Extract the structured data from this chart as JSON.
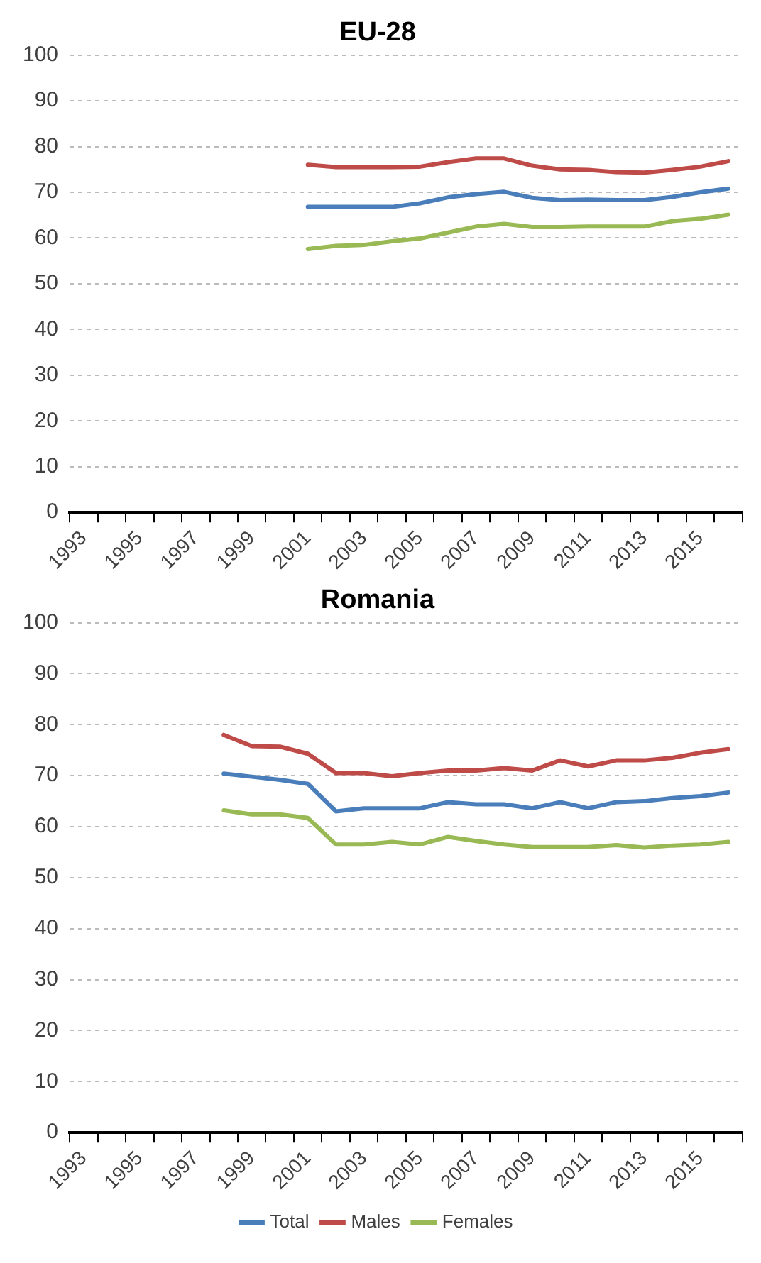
{
  "chart_data": [
    {
      "type": "line",
      "title": "EU-28",
      "categories": [
        "1993",
        null,
        "1995",
        null,
        "1997",
        null,
        "1999",
        null,
        "2001",
        null,
        "2003",
        null,
        "2005",
        null,
        "2007",
        null,
        "2009",
        null,
        "2011",
        null,
        "2013",
        null,
        "2015",
        null
      ],
      "ylim": [
        0,
        100
      ],
      "yticks": [
        0,
        10,
        20,
        30,
        40,
        50,
        60,
        70,
        80,
        90,
        100
      ],
      "grid": "y",
      "legend": false,
      "marker": "none",
      "line_style": "solid",
      "series": [
        {
          "color": "#4a7ebb",
          "values": [
            null,
            null,
            null,
            null,
            null,
            null,
            null,
            null,
            66.8,
            66.8,
            66.8,
            66.8,
            67.6,
            68.9,
            69.6,
            70.1,
            68.8,
            68.3,
            68.4,
            68.3,
            68.3,
            69,
            70,
            70.8
          ]
        },
        {
          "color": "#be4b48",
          "values": [
            null,
            null,
            null,
            null,
            null,
            null,
            null,
            null,
            76,
            75.5,
            75.5,
            75.5,
            75.6,
            76.6,
            77.4,
            77.4,
            75.8,
            75,
            74.9,
            74.4,
            74.3,
            74.9,
            75.6,
            76.8
          ]
        },
        {
          "color": "#98b954",
          "values": [
            null,
            null,
            null,
            null,
            null,
            null,
            null,
            null,
            57.6,
            58.3,
            58.5,
            59.3,
            59.9,
            61.2,
            62.5,
            63.1,
            62.4,
            62.4,
            62.5,
            62.5,
            62.5,
            63.7,
            64.2,
            65.1
          ]
        }
      ]
    },
    {
      "type": "line",
      "title": "Romania",
      "categories": [
        "1993",
        null,
        "1995",
        null,
        "1997",
        null,
        "1999",
        null,
        "2001",
        null,
        "2003",
        null,
        "2005",
        null,
        "2007",
        null,
        "2009",
        null,
        "2011",
        null,
        "2013",
        null,
        "2015",
        null
      ],
      "ylim": [
        0,
        100
      ],
      "yticks": [
        0,
        10,
        20,
        30,
        40,
        50,
        60,
        70,
        80,
        90,
        100
      ],
      "grid": "y",
      "legend": "bottom",
      "marker": "none",
      "line_style": "solid",
      "series": [
        {
          "name": "Total",
          "color": "#4a7ebb",
          "values": [
            null,
            null,
            null,
            null,
            null,
            70.4,
            69.8,
            69.2,
            68.4,
            63,
            63.6,
            63.6,
            63.6,
            64.8,
            64.4,
            64.4,
            63.6,
            64.8,
            63.6,
            64.8,
            65,
            65.6,
            66,
            66.7
          ]
        },
        {
          "name": "Males",
          "color": "#be4b48",
          "values": [
            null,
            null,
            null,
            null,
            null,
            78,
            75.8,
            75.7,
            74.3,
            70.5,
            70.5,
            69.9,
            70.5,
            71,
            71,
            71.5,
            71,
            73,
            71.8,
            73,
            73,
            73.5,
            74.5,
            75.2
          ]
        },
        {
          "name": "Females",
          "color": "#98b954",
          "values": [
            null,
            null,
            null,
            null,
            null,
            63.2,
            62.4,
            62.4,
            61.7,
            56.5,
            56.5,
            57,
            56.5,
            58,
            57.2,
            56.5,
            56,
            56,
            56,
            56.4,
            55.9,
            56.3,
            56.5,
            57
          ]
        }
      ]
    }
  ]
}
